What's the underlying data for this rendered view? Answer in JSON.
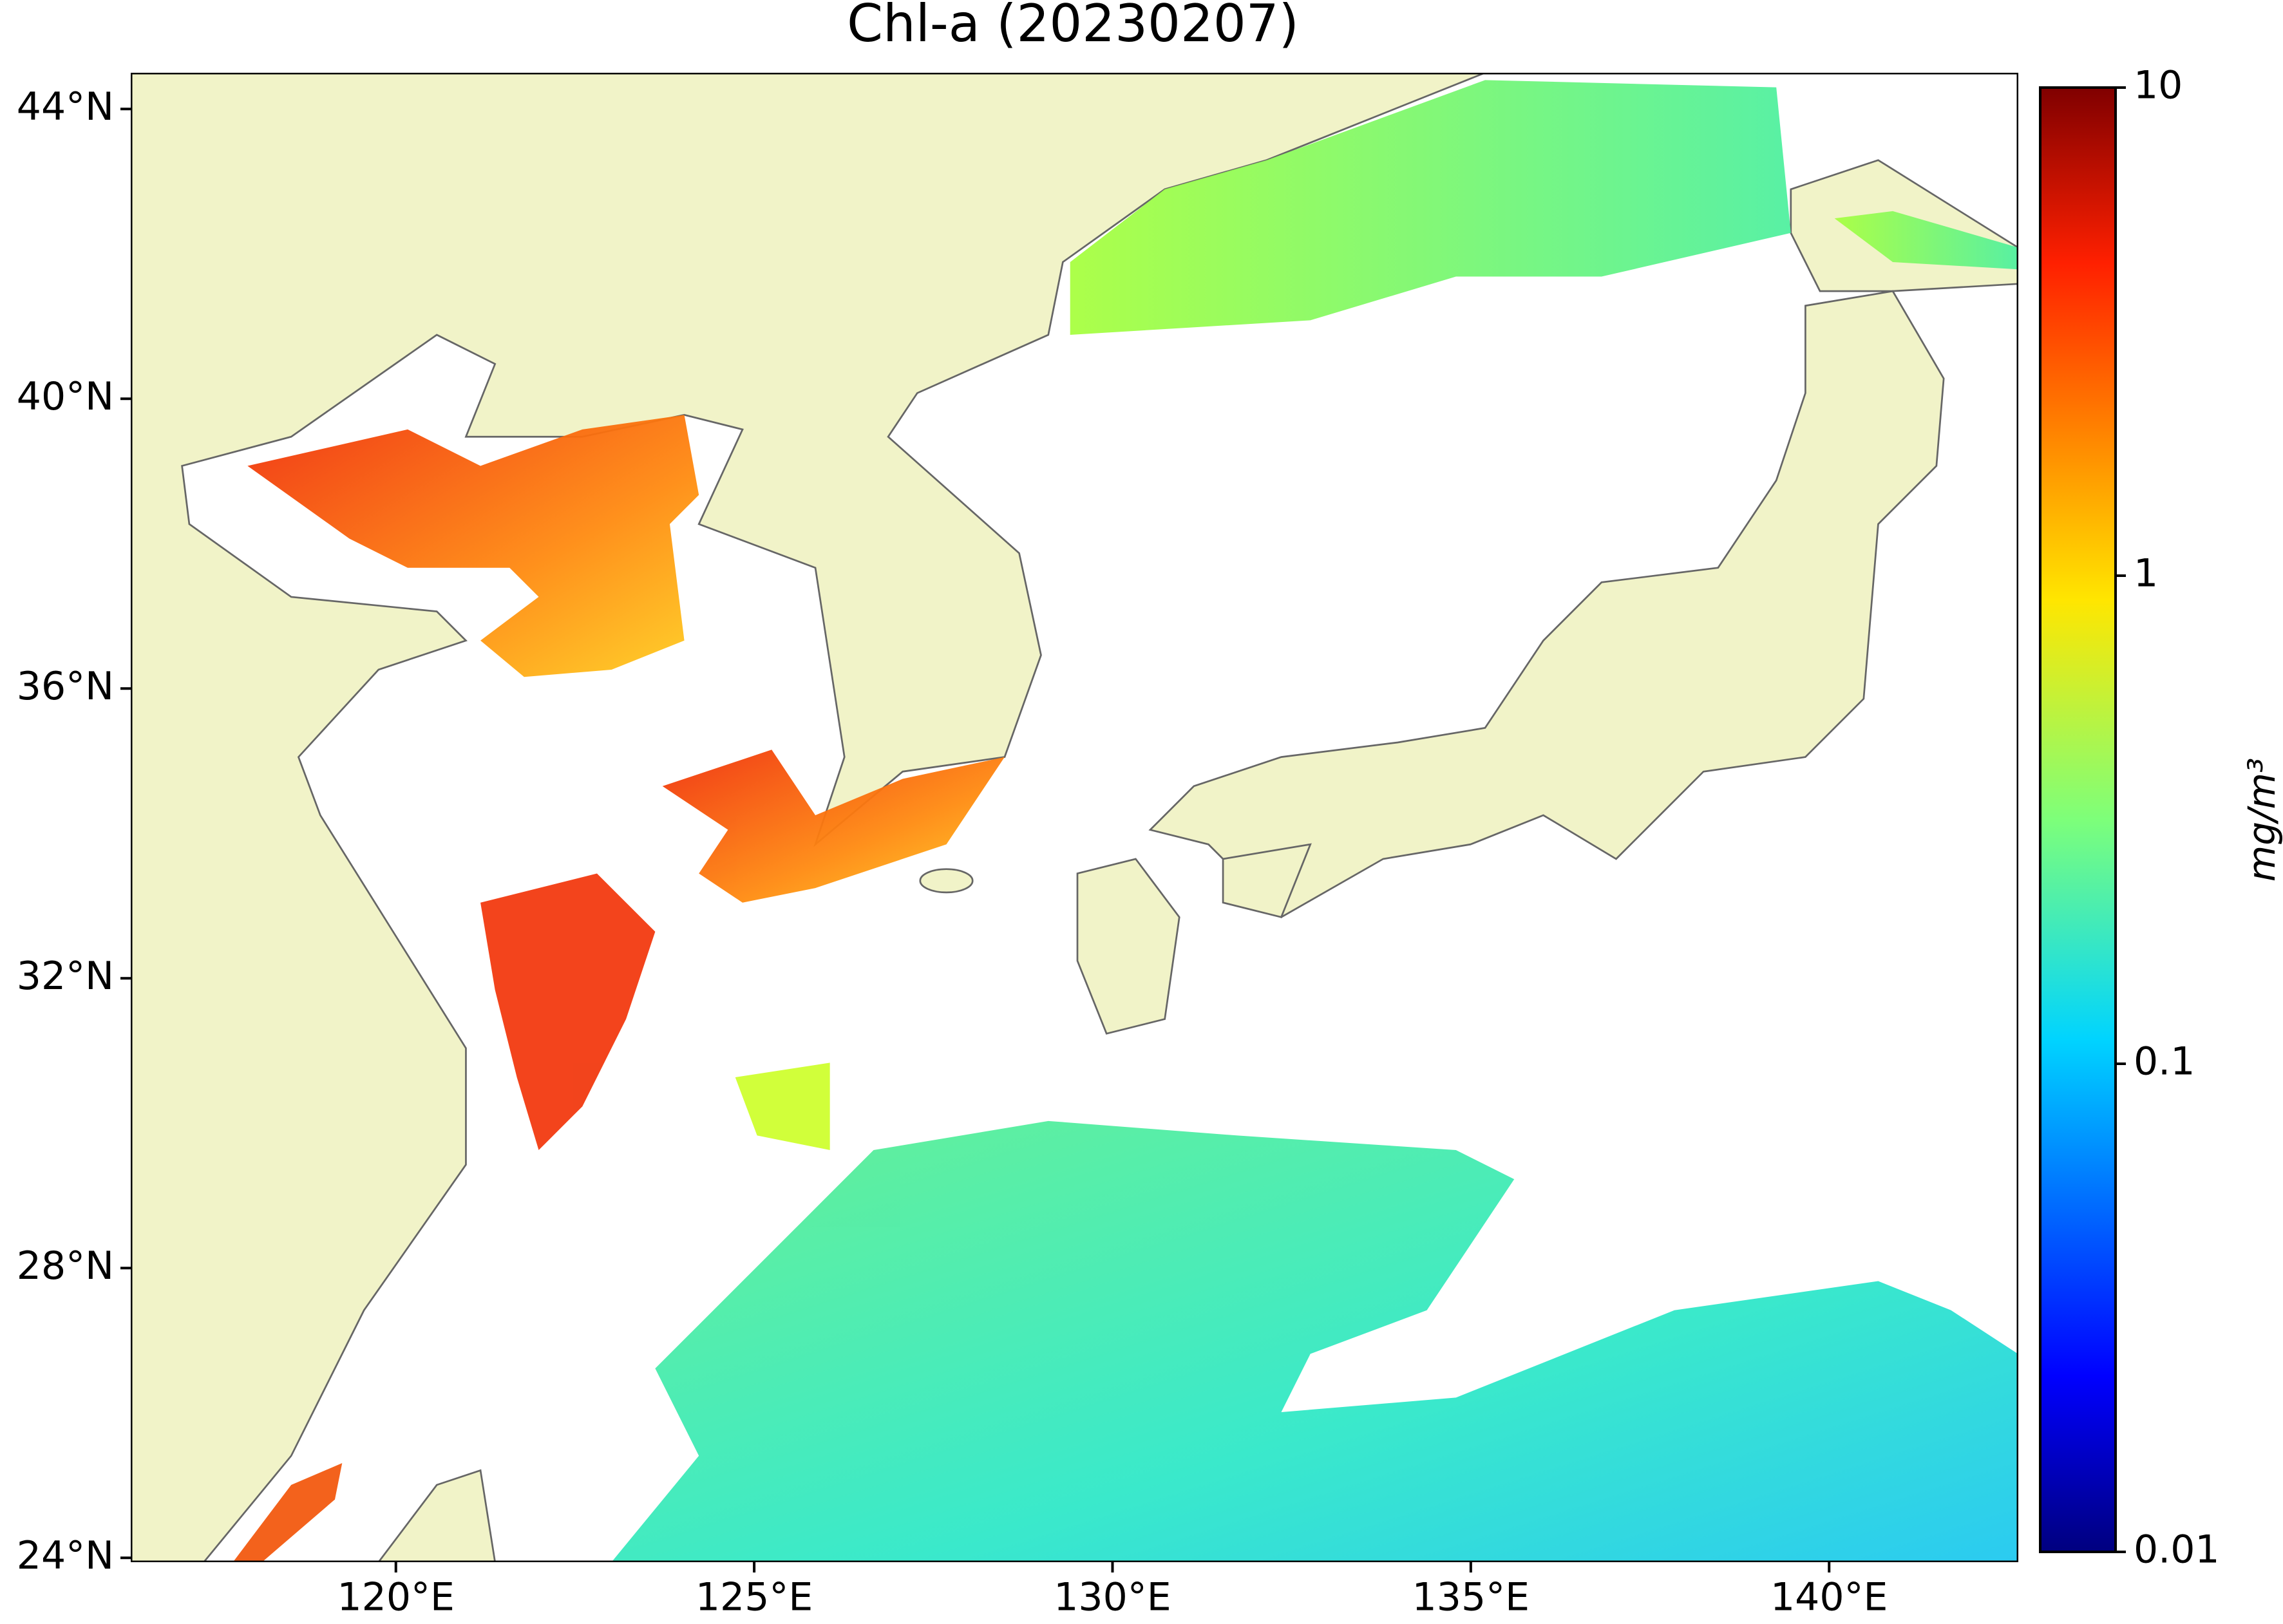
{
  "chart_data": {
    "type": "map",
    "title": "Chl-a (20230207)",
    "xlim": [
      116.3,
      142.64
    ],
    "ylim": [
      23.94,
      44.5
    ],
    "xticks": [
      {
        "value": 120,
        "label": "120°E"
      },
      {
        "value": 125,
        "label": "125°E"
      },
      {
        "value": 130,
        "label": "130°E"
      },
      {
        "value": 135,
        "label": "135°E"
      },
      {
        "value": 140,
        "label": "140°E"
      }
    ],
    "yticks": [
      {
        "value": 24,
        "label": "24°N"
      },
      {
        "value": 28,
        "label": "28°N"
      },
      {
        "value": 32,
        "label": "32°N"
      },
      {
        "value": 36,
        "label": "36°N"
      },
      {
        "value": 40,
        "label": "40°N"
      },
      {
        "value": 44,
        "label": "44°N"
      }
    ],
    "colorbar": {
      "label": "mg/m³",
      "scale": "log",
      "lim": [
        0.01,
        10
      ],
      "ticks": [
        0.01,
        0.1,
        1,
        10
      ]
    }
  }
}
